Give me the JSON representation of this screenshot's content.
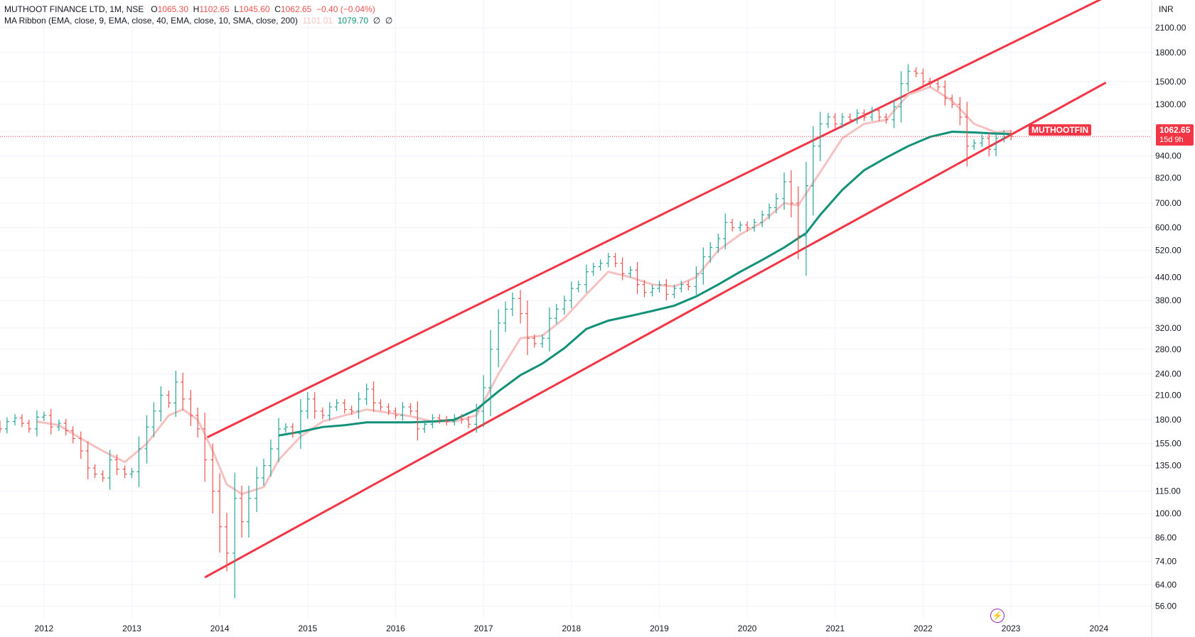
{
  "header": {
    "symbol_line": "MUTHOOT FINANCE LTD, 1M, NSE",
    "open_label": "O",
    "open": "1065.30",
    "high_label": "H",
    "high": "1102.65",
    "low_label": "L",
    "low": "1045.60",
    "close_label": "C",
    "close": "1062.65",
    "change": "−0.40 (−0.04%)",
    "ribbon_label": "MA Ribbon (EMA, close, 9, EMA, close, 40, EMA, close, 10, SMA, close, 200)",
    "ribbon_v1": "1101.01",
    "ribbon_v2": "1079.70",
    "ribbon_v3": "∅",
    "ribbon_v4": "∅"
  },
  "price_badge": {
    "ticker": "MUTHOOTFIN",
    "price": "1062.65",
    "countdown": "15d 9h"
  },
  "currency": "INR",
  "colors": {
    "up": "#26a69a",
    "down": "#ef5350",
    "channel": "#f23645",
    "ema_fast": "#f7c1c1",
    "ema_slow": "#119178"
  },
  "icon": "lightning-icon",
  "chart_data": {
    "type": "ohlc",
    "interval": "1M",
    "scale": "log",
    "y_ticks": [
      56,
      64,
      74,
      86,
      100,
      115,
      135,
      155,
      180,
      210,
      240,
      280,
      320,
      380,
      440,
      520,
      600,
      700,
      820,
      940,
      1100,
      1300,
      1500,
      1800,
      2100
    ],
    "y_tick_labels": [
      "56.00",
      "64.00",
      "74.00",
      "86.00",
      "100.00",
      "115.00",
      "135.00",
      "155.00",
      "180.00",
      "210.00",
      "240.00",
      "280.00",
      "320.00",
      "380.00",
      "440.00",
      "520.00",
      "600.00",
      "700.00",
      "820.00",
      "940.00",
      "1100.00",
      "1300.00",
      "1500.00",
      "1800.00",
      "2100.00"
    ],
    "x_ticks": [
      "2012",
      "2013",
      "2014",
      "2015",
      "2016",
      "2017",
      "2018",
      "2019",
      "2020",
      "2021",
      "2022",
      "2023",
      "2024"
    ],
    "x_range": [
      2011.5,
      2024.6
    ],
    "y_range": [
      52,
      2500
    ],
    "close_series": [
      [
        2011.33,
        180
      ],
      [
        2011.42,
        175
      ],
      [
        2011.5,
        170
      ],
      [
        2011.58,
        178
      ],
      [
        2011.67,
        182
      ],
      [
        2011.75,
        176
      ],
      [
        2011.83,
        170
      ],
      [
        2011.92,
        183
      ],
      [
        2012.0,
        185
      ],
      [
        2012.08,
        172
      ],
      [
        2012.17,
        176
      ],
      [
        2012.25,
        168
      ],
      [
        2012.33,
        160
      ],
      [
        2012.42,
        148
      ],
      [
        2012.5,
        133
      ],
      [
        2012.58,
        128
      ],
      [
        2012.67,
        125
      ],
      [
        2012.75,
        140
      ],
      [
        2012.83,
        132
      ],
      [
        2012.92,
        128
      ],
      [
        2013.0,
        130
      ],
      [
        2013.08,
        150
      ],
      [
        2013.17,
        172
      ],
      [
        2013.25,
        190
      ],
      [
        2013.33,
        210
      ],
      [
        2013.42,
        200
      ],
      [
        2013.5,
        228
      ],
      [
        2013.58,
        205
      ],
      [
        2013.67,
        185
      ],
      [
        2013.75,
        170
      ],
      [
        2013.83,
        140
      ],
      [
        2013.92,
        115
      ],
      [
        2014.0,
        92
      ],
      [
        2014.08,
        78
      ],
      [
        2014.17,
        110
      ],
      [
        2014.25,
        95
      ],
      [
        2014.33,
        110
      ],
      [
        2014.42,
        125
      ],
      [
        2014.5,
        135
      ],
      [
        2014.58,
        150
      ],
      [
        2014.67,
        170
      ],
      [
        2014.75,
        172
      ],
      [
        2014.83,
        165
      ],
      [
        2014.92,
        190
      ],
      [
        2015.0,
        205
      ],
      [
        2015.08,
        190
      ],
      [
        2015.17,
        185
      ],
      [
        2015.25,
        195
      ],
      [
        2015.33,
        200
      ],
      [
        2015.42,
        192
      ],
      [
        2015.5,
        190
      ],
      [
        2015.58,
        205
      ],
      [
        2015.67,
        218
      ],
      [
        2015.75,
        200
      ],
      [
        2015.83,
        195
      ],
      [
        2015.92,
        190
      ],
      [
        2016.0,
        185
      ],
      [
        2016.08,
        195
      ],
      [
        2016.17,
        190
      ],
      [
        2016.25,
        170
      ],
      [
        2016.33,
        175
      ],
      [
        2016.42,
        182
      ],
      [
        2016.5,
        180
      ],
      [
        2016.58,
        178
      ],
      [
        2016.67,
        182
      ],
      [
        2016.75,
        180
      ],
      [
        2016.83,
        175
      ],
      [
        2016.92,
        190
      ],
      [
        2017.0,
        220
      ],
      [
        2017.08,
        280
      ],
      [
        2017.17,
        330
      ],
      [
        2017.25,
        360
      ],
      [
        2017.33,
        385
      ],
      [
        2017.42,
        350
      ],
      [
        2017.5,
        300
      ],
      [
        2017.58,
        290
      ],
      [
        2017.67,
        300
      ],
      [
        2017.75,
        340
      ],
      [
        2017.83,
        360
      ],
      [
        2017.92,
        380
      ],
      [
        2018.0,
        410
      ],
      [
        2018.08,
        420
      ],
      [
        2018.17,
        455
      ],
      [
        2018.25,
        470
      ],
      [
        2018.33,
        480
      ],
      [
        2018.42,
        500
      ],
      [
        2018.5,
        480
      ],
      [
        2018.58,
        450
      ],
      [
        2018.67,
        460
      ],
      [
        2018.75,
        420
      ],
      [
        2018.83,
        400
      ],
      [
        2018.92,
        410
      ],
      [
        2019.0,
        420
      ],
      [
        2019.08,
        395
      ],
      [
        2019.17,
        410
      ],
      [
        2019.25,
        420
      ],
      [
        2019.33,
        415
      ],
      [
        2019.42,
        450
      ],
      [
        2019.5,
        500
      ],
      [
        2019.58,
        530
      ],
      [
        2019.67,
        560
      ],
      [
        2019.75,
        620
      ],
      [
        2019.83,
        600
      ],
      [
        2019.92,
        610
      ],
      [
        2020.0,
        600
      ],
      [
        2020.08,
        620
      ],
      [
        2020.17,
        650
      ],
      [
        2020.25,
        680
      ],
      [
        2020.33,
        720
      ],
      [
        2020.42,
        800
      ],
      [
        2020.5,
        700
      ],
      [
        2020.58,
        570
      ],
      [
        2020.67,
        780
      ],
      [
        2020.75,
        1000
      ],
      [
        2020.83,
        1150
      ],
      [
        2020.92,
        1200
      ],
      [
        2021.0,
        1150
      ],
      [
        2021.08,
        1200
      ],
      [
        2021.17,
        1180
      ],
      [
        2021.25,
        1230
      ],
      [
        2021.33,
        1200
      ],
      [
        2021.42,
        1250
      ],
      [
        2021.5,
        1200
      ],
      [
        2021.58,
        1180
      ],
      [
        2021.67,
        1280
      ],
      [
        2021.75,
        1480
      ],
      [
        2021.83,
        1600
      ],
      [
        2021.92,
        1580
      ],
      [
        2022.0,
        1500
      ],
      [
        2022.08,
        1480
      ],
      [
        2022.17,
        1450
      ],
      [
        2022.25,
        1350
      ],
      [
        2022.33,
        1300
      ],
      [
        2022.42,
        1200
      ],
      [
        2022.5,
        1000
      ],
      [
        2022.58,
        1020
      ],
      [
        2022.67,
        1050
      ],
      [
        2022.75,
        980
      ],
      [
        2022.83,
        1050
      ],
      [
        2022.92,
        1080
      ],
      [
        2023.0,
        1062.65
      ]
    ],
    "ema_fast": [
      [
        2011.92,
        178
      ],
      [
        2012.17,
        174
      ],
      [
        2012.42,
        160
      ],
      [
        2012.67,
        148
      ],
      [
        2012.92,
        138
      ],
      [
        2013.17,
        155
      ],
      [
        2013.42,
        185
      ],
      [
        2013.58,
        192
      ],
      [
        2013.75,
        180
      ],
      [
        2013.92,
        148
      ],
      [
        2014.08,
        120
      ],
      [
        2014.25,
        113
      ],
      [
        2014.5,
        118
      ],
      [
        2014.67,
        140
      ],
      [
        2014.92,
        162
      ],
      [
        2015.17,
        178
      ],
      [
        2015.42,
        185
      ],
      [
        2015.67,
        192
      ],
      [
        2015.92,
        188
      ],
      [
        2016.17,
        184
      ],
      [
        2016.42,
        178
      ],
      [
        2016.67,
        178
      ],
      [
        2016.92,
        185
      ],
      [
        2017.17,
        240
      ],
      [
        2017.42,
        300
      ],
      [
        2017.67,
        305
      ],
      [
        2017.92,
        340
      ],
      [
        2018.17,
        395
      ],
      [
        2018.42,
        455
      ],
      [
        2018.67,
        440
      ],
      [
        2018.92,
        420
      ],
      [
        2019.17,
        415
      ],
      [
        2019.42,
        440
      ],
      [
        2019.67,
        520
      ],
      [
        2019.92,
        575
      ],
      [
        2020.17,
        620
      ],
      [
        2020.42,
        700
      ],
      [
        2020.58,
        690
      ],
      [
        2020.83,
        850
      ],
      [
        2021.08,
        1050
      ],
      [
        2021.33,
        1150
      ],
      [
        2021.58,
        1180
      ],
      [
        2021.83,
        1380
      ],
      [
        2022.08,
        1450
      ],
      [
        2022.33,
        1330
      ],
      [
        2022.58,
        1150
      ],
      [
        2022.83,
        1090
      ],
      [
        2023.0,
        1101
      ]
    ],
    "ema_slow": [
      [
        2014.67,
        163
      ],
      [
        2014.92,
        167
      ],
      [
        2015.17,
        172
      ],
      [
        2015.42,
        174
      ],
      [
        2015.67,
        177
      ],
      [
        2015.92,
        177
      ],
      [
        2016.17,
        177
      ],
      [
        2016.42,
        178
      ],
      [
        2016.67,
        180
      ],
      [
        2016.92,
        192
      ],
      [
        2017.17,
        215
      ],
      [
        2017.42,
        238
      ],
      [
        2017.67,
        256
      ],
      [
        2017.92,
        282
      ],
      [
        2018.17,
        318
      ],
      [
        2018.42,
        335
      ],
      [
        2018.67,
        345
      ],
      [
        2018.92,
        356
      ],
      [
        2019.17,
        368
      ],
      [
        2019.42,
        390
      ],
      [
        2019.67,
        420
      ],
      [
        2019.92,
        455
      ],
      [
        2020.17,
        490
      ],
      [
        2020.42,
        530
      ],
      [
        2020.67,
        580
      ],
      [
        2020.83,
        650
      ],
      [
        2021.08,
        760
      ],
      [
        2021.33,
        860
      ],
      [
        2021.58,
        930
      ],
      [
        2021.83,
        1000
      ],
      [
        2022.08,
        1060
      ],
      [
        2022.33,
        1095
      ],
      [
        2022.58,
        1090
      ],
      [
        2022.83,
        1082
      ],
      [
        2023.0,
        1079.7
      ]
    ],
    "channel_upper": [
      [
        2013.83,
        160
      ],
      [
        2024.08,
        2550
      ]
    ],
    "channel_lower": [
      [
        2013.83,
        67
      ],
      [
        2024.08,
        1490
      ]
    ]
  }
}
